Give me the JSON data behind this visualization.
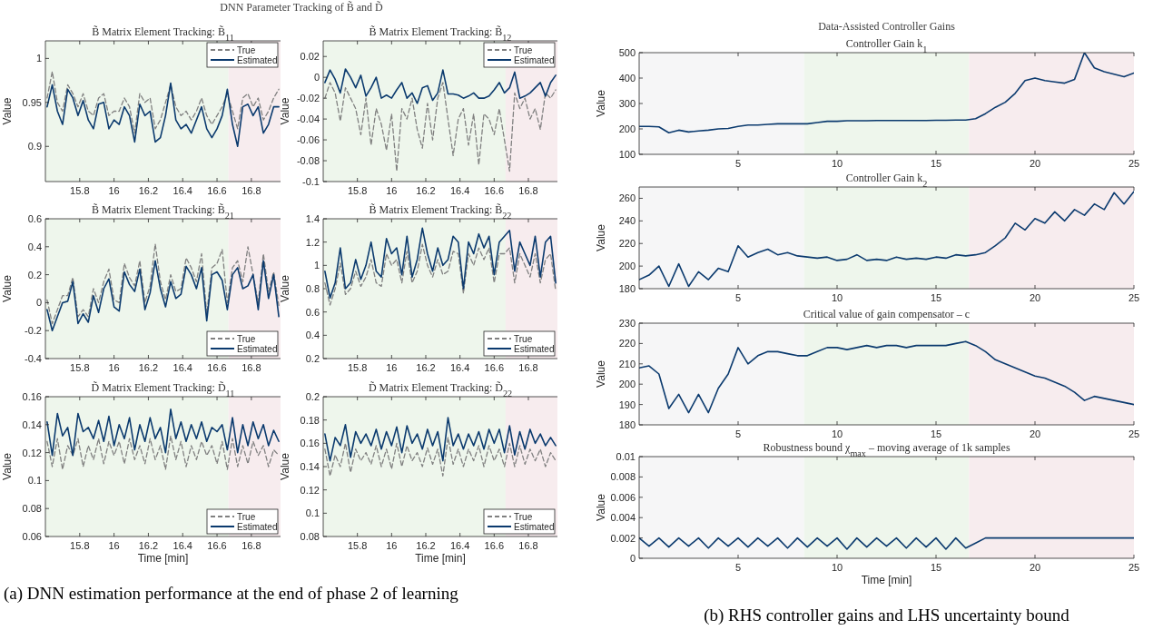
{
  "chart_data": [
    {
      "type": "line",
      "title": "B̃ Matrix Element Tracking: B̃$_{11}$",
      "ylabel": "Value",
      "annotations": [
        "DNN Parameter Tracking of B̃ and D̃",
        "(a) DNN estimation performance at the end of phase 2 of learning"
      ],
      "xlim": [
        15.6,
        16.97
      ],
      "xticks": [
        15.8,
        16,
        16.2,
        16.4,
        16.6,
        16.8
      ],
      "ylim": [
        0.86,
        1.02
      ],
      "yticks": [
        0.9,
        0.95,
        1
      ],
      "legend": "top right",
      "bands": [
        {
          "axis": "x",
          "from": 15.6,
          "to": 16.667,
          "color": "#eef6ec"
        },
        {
          "axis": "x",
          "from": 16.667,
          "to": 16.97,
          "color": "#f7ecee"
        }
      ],
      "x": [
        15.61,
        15.64,
        15.67,
        15.7,
        15.73,
        15.76,
        15.79,
        15.82,
        15.85,
        15.88,
        15.91,
        15.94,
        15.97,
        16,
        16.03,
        16.06,
        16.09,
        16.12,
        16.15,
        16.18,
        16.21,
        16.24,
        16.27,
        16.3,
        16.33,
        16.36,
        16.39,
        16.42,
        16.45,
        16.48,
        16.51,
        16.54,
        16.57,
        16.6,
        16.63,
        16.66,
        16.69,
        16.72,
        16.75,
        16.78,
        16.81,
        16.84,
        16.87,
        16.9,
        16.93,
        16.96
      ],
      "series": [
        {
          "name": "True",
          "color": "#808080",
          "line_style": "dashed",
          "values": [
            0.955,
            0.985,
            0.95,
            0.94,
            0.97,
            0.96,
            0.945,
            0.96,
            0.94,
            0.935,
            0.955,
            0.96,
            0.935,
            0.94,
            0.94,
            0.955,
            0.945,
            0.915,
            0.96,
            0.95,
            0.955,
            0.92,
            0.93,
            0.95,
            0.97,
            0.945,
            0.935,
            0.94,
            0.93,
            0.94,
            0.955,
            0.935,
            0.925,
            0.935,
            0.945,
            0.96,
            0.94,
            0.92,
            0.955,
            0.96,
            0.945,
            0.955,
            0.93,
            0.94,
            0.955,
            0.965
          ]
        },
        {
          "name": "Estimated",
          "color": "#0b3a6e",
          "line_style": "solid",
          "values": [
            0.945,
            0.97,
            0.94,
            0.925,
            0.965,
            0.955,
            0.935,
            0.952,
            0.93,
            0.92,
            0.948,
            0.95,
            0.92,
            0.93,
            0.925,
            0.945,
            0.935,
            0.905,
            0.948,
            0.935,
            0.94,
            0.905,
            0.91,
            0.935,
            0.972,
            0.93,
            0.92,
            0.925,
            0.915,
            0.93,
            0.945,
            0.92,
            0.91,
            0.92,
            0.935,
            0.965,
            0.925,
            0.9,
            0.945,
            0.948,
            0.935,
            0.945,
            0.915,
            0.925,
            0.945,
            0.945
          ]
        }
      ]
    },
    {
      "type": "line",
      "title": "B̃ Matrix Element Tracking: B̃$_{12}$",
      "ylabel": "Value",
      "xlim": [
        15.6,
        16.97
      ],
      "xticks": [
        15.8,
        16,
        16.2,
        16.4,
        16.6,
        16.8
      ],
      "ylim": [
        -0.1,
        0.035
      ],
      "yticks": [
        -0.1,
        -0.08,
        -0.06,
        -0.04,
        -0.02,
        0,
        0.02
      ],
      "legend": "top right",
      "bands": [
        {
          "axis": "x",
          "from": 15.6,
          "to": 16.667,
          "color": "#eef6ec"
        },
        {
          "axis": "x",
          "from": 16.667,
          "to": 16.97,
          "color": "#f7ecee"
        }
      ],
      "x": [
        15.61,
        15.64,
        15.67,
        15.7,
        15.73,
        15.76,
        15.79,
        15.82,
        15.85,
        15.88,
        15.91,
        15.94,
        15.97,
        16,
        16.03,
        16.06,
        16.09,
        16.12,
        16.15,
        16.18,
        16.21,
        16.24,
        16.27,
        16.3,
        16.33,
        16.36,
        16.39,
        16.42,
        16.45,
        16.48,
        16.51,
        16.54,
        16.57,
        16.6,
        16.63,
        16.66,
        16.69,
        16.72,
        16.75,
        16.78,
        16.81,
        16.84,
        16.87,
        16.9,
        16.93,
        16.96
      ],
      "series": [
        {
          "name": "True",
          "color": "#808080",
          "line_style": "dashed",
          "values": [
            -0.02,
            -0.005,
            -0.015,
            -0.042,
            -0.01,
            -0.02,
            -0.03,
            -0.055,
            -0.02,
            -0.065,
            -0.03,
            -0.045,
            -0.07,
            -0.035,
            -0.09,
            -0.03,
            -0.04,
            -0.02,
            -0.05,
            -0.068,
            -0.025,
            -0.06,
            -0.02,
            -0.005,
            -0.04,
            -0.075,
            -0.04,
            -0.03,
            -0.065,
            -0.035,
            -0.084,
            -0.035,
            -0.04,
            -0.055,
            -0.03,
            -0.06,
            -0.09,
            -0.015,
            -0.03,
            -0.02,
            -0.04,
            -0.03,
            -0.05,
            -0.015,
            -0.02,
            -0.012
          ]
        },
        {
          "name": "Estimated",
          "color": "#0b3a6e",
          "line_style": "solid",
          "values": [
            -0.005,
            0.007,
            -0.002,
            -0.015,
            0.008,
            0,
            -0.01,
            0.002,
            -0.018,
            -0.01,
            0,
            -0.02,
            -0.017,
            -0.02,
            -0.012,
            -0.005,
            -0.02,
            -0.015,
            -0.025,
            -0.01,
            -0.008,
            -0.022,
            -0.015,
            0.007,
            -0.016,
            -0.016,
            -0.017,
            -0.02,
            -0.018,
            -0.015,
            -0.02,
            -0.02,
            -0.018,
            -0.012,
            -0.005,
            -0.015,
            -0.01,
            0.005,
            -0.02,
            -0.018,
            -0.015,
            -0.01,
            -0.005,
            -0.018,
            -0.005,
            0.002
          ]
        }
      ]
    },
    {
      "type": "line",
      "title": "B̃ Matrix Element Tracking: B̃$_{21}$",
      "ylabel": "Value",
      "xlim": [
        15.6,
        16.97
      ],
      "xticks": [
        15.8,
        16,
        16.2,
        16.4,
        16.6,
        16.8
      ],
      "ylim": [
        -0.4,
        0.6
      ],
      "yticks": [
        -0.4,
        -0.2,
        0,
        0.2,
        0.4,
        0.6
      ],
      "legend": "bottom right",
      "bands": [
        {
          "axis": "x",
          "from": 15.6,
          "to": 16.667,
          "color": "#eef6ec"
        },
        {
          "axis": "x",
          "from": 16.667,
          "to": 16.97,
          "color": "#f7ecee"
        }
      ],
      "x": [
        15.61,
        15.64,
        15.67,
        15.7,
        15.73,
        15.76,
        15.79,
        15.82,
        15.85,
        15.88,
        15.91,
        15.94,
        15.97,
        16,
        16.03,
        16.06,
        16.09,
        16.12,
        16.15,
        16.18,
        16.21,
        16.24,
        16.27,
        16.3,
        16.33,
        16.36,
        16.39,
        16.42,
        16.45,
        16.48,
        16.51,
        16.54,
        16.57,
        16.6,
        16.63,
        16.66,
        16.69,
        16.72,
        16.75,
        16.78,
        16.81,
        16.84,
        16.87,
        16.9,
        16.93,
        16.96
      ],
      "series": [
        {
          "name": "True",
          "color": "#808080",
          "line_style": "dashed",
          "values": [
            0.02,
            -0.15,
            -0.05,
            0.05,
            0.05,
            0.18,
            -0.1,
            -0.05,
            -0.1,
            0.1,
            0,
            0.15,
            0.24,
            0.02,
            0,
            0.28,
            0.18,
            0.12,
            0.3,
            0,
            0.12,
            0.42,
            0.15,
            0.02,
            0.2,
            0.08,
            0.1,
            0.32,
            0.25,
            0.15,
            0.35,
            -0.08,
            0.25,
            0.28,
            0.38,
            0,
            0.25,
            0.3,
            0.15,
            0.4,
            0.2,
            0,
            0.35,
            0.08,
            0.22,
            -0.02
          ]
        },
        {
          "name": "Estimated",
          "color": "#0b3a6e",
          "line_style": "solid",
          "values": [
            -0.05,
            -0.2,
            -0.1,
            0,
            0.01,
            0.15,
            -0.15,
            -0.08,
            -0.14,
            0.05,
            -0.07,
            0.1,
            0.17,
            -0.03,
            -0.06,
            0.22,
            0.13,
            0.08,
            0.24,
            -0.05,
            0.07,
            0.3,
            0.1,
            -0.03,
            0.15,
            0.03,
            0.06,
            0.26,
            0.2,
            0.1,
            0.25,
            -0.13,
            0.2,
            0.22,
            0.16,
            -0.05,
            0.2,
            0.25,
            0.1,
            0.12,
            0.2,
            -0.05,
            0.3,
            0.03,
            0.2,
            -0.1
          ]
        }
      ]
    },
    {
      "type": "line",
      "title": "B̃ Matrix Element Tracking: B̃$_{22}$",
      "ylabel": "Value",
      "xlim": [
        15.6,
        16.97
      ],
      "xticks": [
        15.8,
        16,
        16.2,
        16.4,
        16.6,
        16.8
      ],
      "ylim": [
        0.2,
        1.4
      ],
      "yticks": [
        0.2,
        0.4,
        0.6,
        0.8,
        1,
        1.2,
        1.4
      ],
      "legend": "bottom right",
      "bands": [
        {
          "axis": "x",
          "from": 15.6,
          "to": 16.667,
          "color": "#eef6ec"
        },
        {
          "axis": "x",
          "from": 16.667,
          "to": 16.97,
          "color": "#f7ecee"
        }
      ],
      "x": [
        15.61,
        15.64,
        15.67,
        15.7,
        15.73,
        15.76,
        15.79,
        15.82,
        15.85,
        15.88,
        15.91,
        15.94,
        15.97,
        16,
        16.03,
        16.06,
        16.09,
        16.12,
        16.15,
        16.18,
        16.21,
        16.24,
        16.27,
        16.3,
        16.33,
        16.36,
        16.39,
        16.42,
        16.45,
        16.48,
        16.51,
        16.54,
        16.57,
        16.6,
        16.63,
        16.66,
        16.69,
        16.72,
        16.75,
        16.78,
        16.81,
        16.84,
        16.87,
        16.9,
        16.93,
        16.96
      ],
      "series": [
        {
          "name": "True",
          "color": "#808080",
          "line_style": "dashed",
          "values": [
            0.85,
            0.66,
            0.8,
            1.02,
            0.75,
            0.8,
            0.95,
            0.82,
            0.9,
            1.05,
            0.85,
            0.82,
            1.1,
            1.0,
            1.05,
            0.85,
            1.12,
            0.85,
            0.95,
            1.18,
            1.0,
            0.9,
            1.05,
            0.92,
            0.95,
            1.12,
            1.1,
            0.76,
            1.1,
            1.0,
            1.15,
            1.05,
            1.15,
            0.85,
            1.1,
            1.1,
            1.15,
            0.85,
            1.1,
            1.0,
            0.9,
            1.1,
            0.85,
            1.05,
            1.1,
            0.78
          ]
        },
        {
          "name": "Estimated",
          "color": "#0b3a6e",
          "line_style": "solid",
          "values": [
            0.95,
            0.72,
            0.85,
            1.15,
            0.8,
            0.85,
            1.05,
            0.88,
            1.0,
            1.2,
            0.95,
            0.9,
            1.23,
            1.1,
            1.15,
            0.92,
            1.25,
            0.9,
            1.05,
            1.32,
            1.1,
            0.95,
            1.15,
            1.0,
            1.05,
            1.25,
            1.2,
            0.8,
            1.2,
            1.1,
            1.27,
            1.15,
            1.25,
            0.92,
            1.2,
            1.25,
            1.3,
            0.95,
            1.2,
            1.1,
            1.0,
            1.25,
            0.9,
            1.2,
            1.25,
            0.85
          ]
        }
      ]
    },
    {
      "type": "line",
      "title": "D̃ Matrix Element Tracking: D̃$_{11}$",
      "xlabel": "Time [min]",
      "ylabel": "Value",
      "xlim": [
        15.6,
        16.97
      ],
      "xticks": [
        15.8,
        16,
        16.2,
        16.4,
        16.6,
        16.8
      ],
      "ylim": [
        0.06,
        0.16
      ],
      "yticks": [
        0.06,
        0.08,
        0.1,
        0.12,
        0.14,
        0.16
      ],
      "legend": "bottom right",
      "bands": [
        {
          "axis": "x",
          "from": 15.6,
          "to": 16.667,
          "color": "#eef6ec"
        },
        {
          "axis": "x",
          "from": 16.667,
          "to": 16.97,
          "color": "#f7ecee"
        }
      ],
      "x": [
        15.61,
        15.64,
        15.67,
        15.7,
        15.73,
        15.76,
        15.79,
        15.82,
        15.85,
        15.88,
        15.91,
        15.94,
        15.97,
        16,
        16.03,
        16.06,
        16.09,
        16.12,
        16.15,
        16.18,
        16.21,
        16.24,
        16.27,
        16.3,
        16.33,
        16.36,
        16.39,
        16.42,
        16.45,
        16.48,
        16.51,
        16.54,
        16.57,
        16.6,
        16.63,
        16.66,
        16.69,
        16.72,
        16.75,
        16.78,
        16.81,
        16.84,
        16.87,
        16.9,
        16.93,
        16.96
      ],
      "series": [
        {
          "name": "True",
          "color": "#808080",
          "line_style": "dashed",
          "values": [
            0.128,
            0.11,
            0.13,
            0.108,
            0.125,
            0.118,
            0.13,
            0.11,
            0.125,
            0.115,
            0.13,
            0.112,
            0.128,
            0.118,
            0.128,
            0.112,
            0.13,
            0.115,
            0.125,
            0.112,
            0.13,
            0.115,
            0.125,
            0.108,
            0.132,
            0.115,
            0.128,
            0.11,
            0.125,
            0.115,
            0.128,
            0.118,
            0.125,
            0.112,
            0.128,
            0.108,
            0.13,
            0.11,
            0.125,
            0.112,
            0.128,
            0.118,
            0.125,
            0.11,
            0.122,
            0.118
          ]
        },
        {
          "name": "Estimated",
          "color": "#0b3a6e",
          "line_style": "solid",
          "values": [
            0.142,
            0.118,
            0.148,
            0.132,
            0.138,
            0.118,
            0.148,
            0.135,
            0.138,
            0.13,
            0.143,
            0.128,
            0.146,
            0.125,
            0.14,
            0.13,
            0.145,
            0.122,
            0.14,
            0.128,
            0.145,
            0.13,
            0.138,
            0.12,
            0.151,
            0.13,
            0.142,
            0.128,
            0.14,
            0.13,
            0.142,
            0.128,
            0.138,
            0.135,
            0.14,
            0.122,
            0.145,
            0.12,
            0.14,
            0.125,
            0.142,
            0.13,
            0.14,
            0.125,
            0.136,
            0.128
          ]
        }
      ]
    },
    {
      "type": "line",
      "title": "D̃ Matrix Element Tracking: D̃$_{22}$",
      "xlabel": "Time [min]",
      "ylabel": "Value",
      "xlim": [
        15.6,
        16.97
      ],
      "xticks": [
        15.8,
        16,
        16.2,
        16.4,
        16.6,
        16.8
      ],
      "ylim": [
        0.08,
        0.2
      ],
      "yticks": [
        0.08,
        0.1,
        0.12,
        0.14,
        0.16,
        0.18,
        0.2
      ],
      "legend": "bottom right",
      "bands": [
        {
          "axis": "x",
          "from": 15.6,
          "to": 16.667,
          "color": "#eef6ec"
        },
        {
          "axis": "x",
          "from": 16.667,
          "to": 16.97,
          "color": "#f7ecee"
        }
      ],
      "x": [
        15.61,
        15.64,
        15.67,
        15.7,
        15.73,
        15.76,
        15.79,
        15.82,
        15.85,
        15.88,
        15.91,
        15.94,
        15.97,
        16,
        16.03,
        16.06,
        16.09,
        16.12,
        16.15,
        16.18,
        16.21,
        16.24,
        16.27,
        16.3,
        16.33,
        16.36,
        16.39,
        16.42,
        16.45,
        16.48,
        16.51,
        16.54,
        16.57,
        16.6,
        16.63,
        16.66,
        16.69,
        16.72,
        16.75,
        16.78,
        16.81,
        16.84,
        16.87,
        16.9,
        16.93,
        16.96
      ],
      "series": [
        {
          "name": "True",
          "color": "#808080",
          "line_style": "dashed",
          "values": [
            0.155,
            0.132,
            0.15,
            0.14,
            0.16,
            0.135,
            0.155,
            0.145,
            0.152,
            0.142,
            0.158,
            0.14,
            0.155,
            0.138,
            0.16,
            0.14,
            0.158,
            0.145,
            0.152,
            0.14,
            0.156,
            0.142,
            0.155,
            0.132,
            0.165,
            0.142,
            0.155,
            0.14,
            0.155,
            0.145,
            0.158,
            0.14,
            0.158,
            0.145,
            0.155,
            0.14,
            0.16,
            0.14,
            0.158,
            0.142,
            0.155,
            0.145,
            0.155,
            0.14,
            0.152,
            0.145
          ]
        },
        {
          "name": "Estimated",
          "color": "#0b3a6e",
          "line_style": "solid",
          "values": [
            0.168,
            0.145,
            0.165,
            0.158,
            0.176,
            0.148,
            0.17,
            0.16,
            0.168,
            0.158,
            0.172,
            0.155,
            0.17,
            0.158,
            0.174,
            0.152,
            0.175,
            0.16,
            0.168,
            0.155,
            0.172,
            0.158,
            0.17,
            0.145,
            0.182,
            0.158,
            0.168,
            0.155,
            0.168,
            0.158,
            0.17,
            0.155,
            0.172,
            0.16,
            0.172,
            0.152,
            0.175,
            0.15,
            0.17,
            0.155,
            0.172,
            0.16,
            0.168,
            0.158,
            0.165,
            0.158
          ]
        }
      ]
    },
    {
      "type": "line",
      "title": "Controller Gain k$_{1}$",
      "ylabel": "Value",
      "annotations": [
        "Data-Assisted Controller Gains",
        "(b) RHS controller gains and LHS uncertainty bound"
      ],
      "xlim": [
        0,
        25
      ],
      "xticks": [
        5,
        10,
        15,
        20,
        25
      ],
      "ylim": [
        100,
        500
      ],
      "yticks": [
        100,
        200,
        300,
        400,
        500
      ],
      "bands": [
        {
          "axis": "x",
          "from": 0,
          "to": 8.333,
          "color": "#f6f6f7"
        },
        {
          "axis": "x",
          "from": 8.333,
          "to": 16.667,
          "color": "#eef6ec"
        },
        {
          "axis": "x",
          "from": 16.667,
          "to": 25,
          "color": "#f7ecee"
        }
      ],
      "x": [
        0,
        0.5,
        1,
        1.5,
        2,
        2.5,
        3,
        3.5,
        4,
        4.5,
        5,
        5.5,
        6,
        6.5,
        7,
        7.5,
        8,
        8.5,
        9,
        9.5,
        10,
        10.5,
        11,
        11.5,
        12,
        12.5,
        13,
        13.5,
        14,
        14.5,
        15,
        15.5,
        16,
        16.5,
        17,
        17.5,
        18,
        18.5,
        19,
        19.5,
        20,
        20.5,
        21,
        21.5,
        22,
        22.5,
        23,
        23.5,
        24,
        24.5,
        25
      ],
      "series": [
        {
          "color": "#0b3a6e",
          "values": [
            210,
            210,
            208,
            185,
            195,
            188,
            192,
            195,
            200,
            202,
            210,
            215,
            215,
            218,
            220,
            220,
            220,
            220,
            225,
            230,
            230,
            232,
            232,
            232,
            233,
            233,
            233,
            233,
            233,
            233,
            234,
            234,
            235,
            235,
            240,
            260,
            285,
            305,
            340,
            390,
            400,
            390,
            385,
            380,
            395,
            500,
            440,
            425,
            415,
            405,
            420
          ]
        }
      ]
    },
    {
      "type": "line",
      "title": "Controller Gain k$_{2}$",
      "ylabel": "Value",
      "xlim": [
        0,
        25
      ],
      "xticks": [
        5,
        10,
        15,
        20,
        25
      ],
      "ylim": [
        180,
        270
      ],
      "yticks": [
        180,
        200,
        220,
        240,
        260
      ],
      "bands": [
        {
          "axis": "x",
          "from": 0,
          "to": 8.333,
          "color": "#f6f6f7"
        },
        {
          "axis": "x",
          "from": 8.333,
          "to": 16.667,
          "color": "#eef6ec"
        },
        {
          "axis": "x",
          "from": 16.667,
          "to": 25,
          "color": "#f7ecee"
        }
      ],
      "x": [
        0,
        0.5,
        1,
        1.5,
        2,
        2.5,
        3,
        3.5,
        4,
        4.5,
        5,
        5.5,
        6,
        6.5,
        7,
        7.5,
        8,
        8.5,
        9,
        9.5,
        10,
        10.5,
        11,
        11.5,
        12,
        12.5,
        13,
        13.5,
        14,
        14.5,
        15,
        15.5,
        16,
        16.5,
        17,
        17.5,
        18,
        18.5,
        19,
        19.5,
        20,
        20.5,
        21,
        21.5,
        22,
        22.5,
        23,
        23.5,
        24,
        24.5,
        25
      ],
      "series": [
        {
          "color": "#0b3a6e",
          "values": [
            188,
            192,
            200,
            182,
            202,
            182,
            195,
            188,
            198,
            195,
            218,
            208,
            212,
            215,
            210,
            212,
            209,
            208,
            207,
            208,
            205,
            206,
            210,
            205,
            206,
            205,
            208,
            206,
            207,
            206,
            208,
            207,
            210,
            209,
            210,
            212,
            218,
            225,
            238,
            232,
            242,
            238,
            248,
            240,
            250,
            245,
            255,
            250,
            265,
            255,
            266
          ]
        }
      ]
    },
    {
      "type": "line",
      "title": "Critical value of gain compensator – c",
      "ylabel": "Value",
      "xlim": [
        0,
        25
      ],
      "xticks": [
        5,
        10,
        15,
        20,
        25
      ],
      "ylim": [
        180,
        230
      ],
      "yticks": [
        180,
        190,
        200,
        210,
        220,
        230
      ],
      "bands": [
        {
          "axis": "x",
          "from": 0,
          "to": 8.333,
          "color": "#f6f6f7"
        },
        {
          "axis": "x",
          "from": 8.333,
          "to": 16.667,
          "color": "#eef6ec"
        },
        {
          "axis": "x",
          "from": 16.667,
          "to": 25,
          "color": "#f7ecee"
        }
      ],
      "x": [
        0,
        0.5,
        1,
        1.5,
        2,
        2.5,
        3,
        3.5,
        4,
        4.5,
        5,
        5.5,
        6,
        6.5,
        7,
        7.5,
        8,
        8.5,
        9,
        9.5,
        10,
        10.5,
        11,
        11.5,
        12,
        12.5,
        13,
        13.5,
        14,
        14.5,
        15,
        15.5,
        16,
        16.5,
        17,
        17.5,
        18,
        18.5,
        19,
        19.5,
        20,
        20.5,
        21,
        21.5,
        22,
        22.5,
        23,
        23.5,
        24,
        24.5,
        25
      ],
      "series": [
        {
          "color": "#0b3a6e",
          "values": [
            208,
            209,
            205,
            188,
            195,
            186,
            195,
            186,
            198,
            205,
            218,
            210,
            214,
            216,
            216,
            215,
            214,
            214,
            216,
            218,
            218,
            217,
            218,
            219,
            218,
            219,
            219,
            218,
            219,
            219,
            219,
            219,
            220,
            221,
            219,
            216,
            212,
            210,
            208,
            206,
            204,
            203,
            201,
            199,
            196,
            192,
            194,
            193,
            192,
            191,
            190
          ]
        }
      ]
    },
    {
      "type": "line",
      "title": "Robustness bound χ$_{max}$ – moving average of 1k samples",
      "xlabel": "Time [min]",
      "ylabel": "Value",
      "xlim": [
        0,
        25
      ],
      "xticks": [
        5,
        10,
        15,
        20,
        25
      ],
      "ylim": [
        0,
        0.01
      ],
      "yticks": [
        0,
        0.002,
        0.004,
        0.006,
        0.008,
        0.01
      ],
      "bands": [
        {
          "axis": "x",
          "from": 0,
          "to": 8.333,
          "color": "#f6f6f7"
        },
        {
          "axis": "x",
          "from": 8.333,
          "to": 16.667,
          "color": "#eef6ec"
        },
        {
          "axis": "x",
          "from": 16.667,
          "to": 25,
          "color": "#f7ecee"
        }
      ],
      "x": [
        0,
        0.5,
        1,
        1.5,
        2,
        2.5,
        3,
        3.5,
        4,
        4.5,
        5,
        5.5,
        6,
        6.5,
        7,
        7.5,
        8,
        8.5,
        9,
        9.5,
        10,
        10.5,
        11,
        11.5,
        12,
        12.5,
        13,
        13.5,
        14,
        14.5,
        15,
        15.5,
        16,
        16.5,
        17,
        17.5,
        18,
        18.5,
        19,
        19.5,
        20,
        20.5,
        21,
        21.5,
        22,
        22.5,
        23,
        23.5,
        24,
        24.5,
        25
      ],
      "series": [
        {
          "color": "#0b3a6e",
          "values": [
            0.002,
            0.0012,
            0.002,
            0.0011,
            0.002,
            0.0012,
            0.002,
            0.001,
            0.002,
            0.0012,
            0.002,
            0.0011,
            0.002,
            0.0012,
            0.002,
            0.001,
            0.002,
            0.0011,
            0.002,
            0.0012,
            0.002,
            0.0009,
            0.002,
            0.0011,
            0.002,
            0.0012,
            0.002,
            0.001,
            0.002,
            0.0011,
            0.002,
            0.0009,
            0.002,
            0.001,
            0.0015,
            0.002,
            0.002,
            0.002,
            0.002,
            0.002,
            0.002,
            0.002,
            0.002,
            0.002,
            0.002,
            0.002,
            0.002,
            0.002,
            0.002,
            0.002,
            0.002
          ]
        }
      ]
    }
  ]
}
